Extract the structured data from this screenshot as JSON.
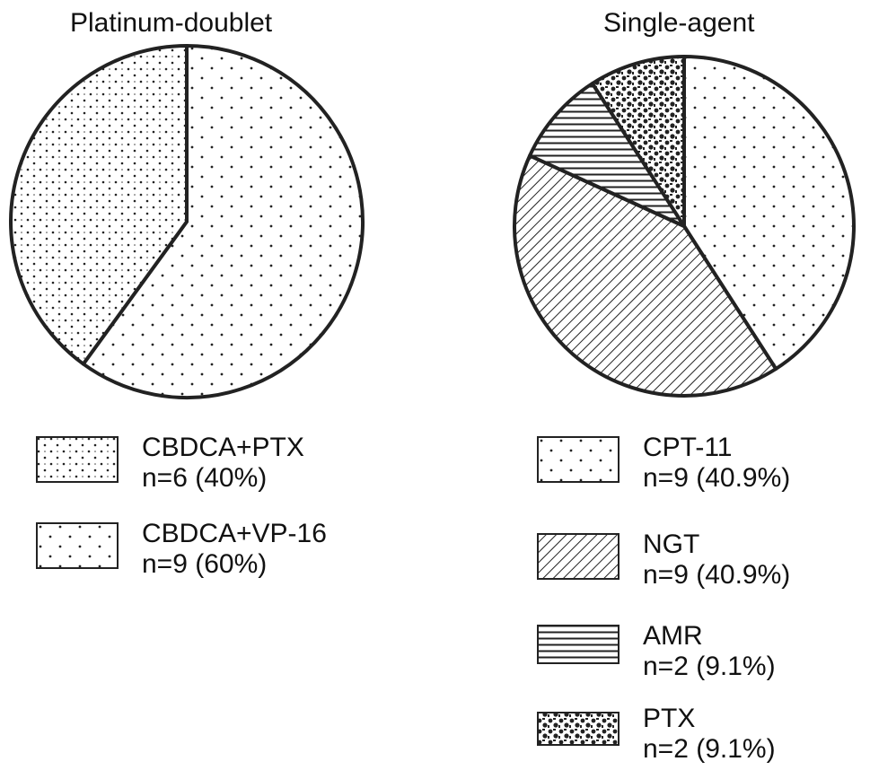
{
  "chart_data": [
    {
      "type": "pie",
      "title": "Platinum-doublet",
      "slices": [
        {
          "label": "CBDCA+PTX",
          "count_label": "n=6 (40%)",
          "value": 6,
          "percent": 40,
          "pattern": "dense-dots"
        },
        {
          "label": "CBDCA+VP-16",
          "count_label": "n=9 (60%)",
          "value": 9,
          "percent": 60,
          "pattern": "sparse-dots"
        }
      ]
    },
    {
      "type": "pie",
      "title": "Single-agent",
      "slices": [
        {
          "label": "CPT-11",
          "count_label": "n=9 (40.9%)",
          "value": 9,
          "percent": 40.9,
          "pattern": "sparse-dots"
        },
        {
          "label": "NGT",
          "count_label": "n=9 (40.9%)",
          "value": 9,
          "percent": 40.9,
          "pattern": "diagonal-hatch"
        },
        {
          "label": "AMR",
          "count_label": "n=2 (9.1%)",
          "value": 2,
          "percent": 9.1,
          "pattern": "horizontal-lines"
        },
        {
          "label": "PTX",
          "count_label": "n=2 (9.1%)",
          "value": 2,
          "percent": 9.1,
          "pattern": "dense-blotches"
        }
      ]
    }
  ]
}
